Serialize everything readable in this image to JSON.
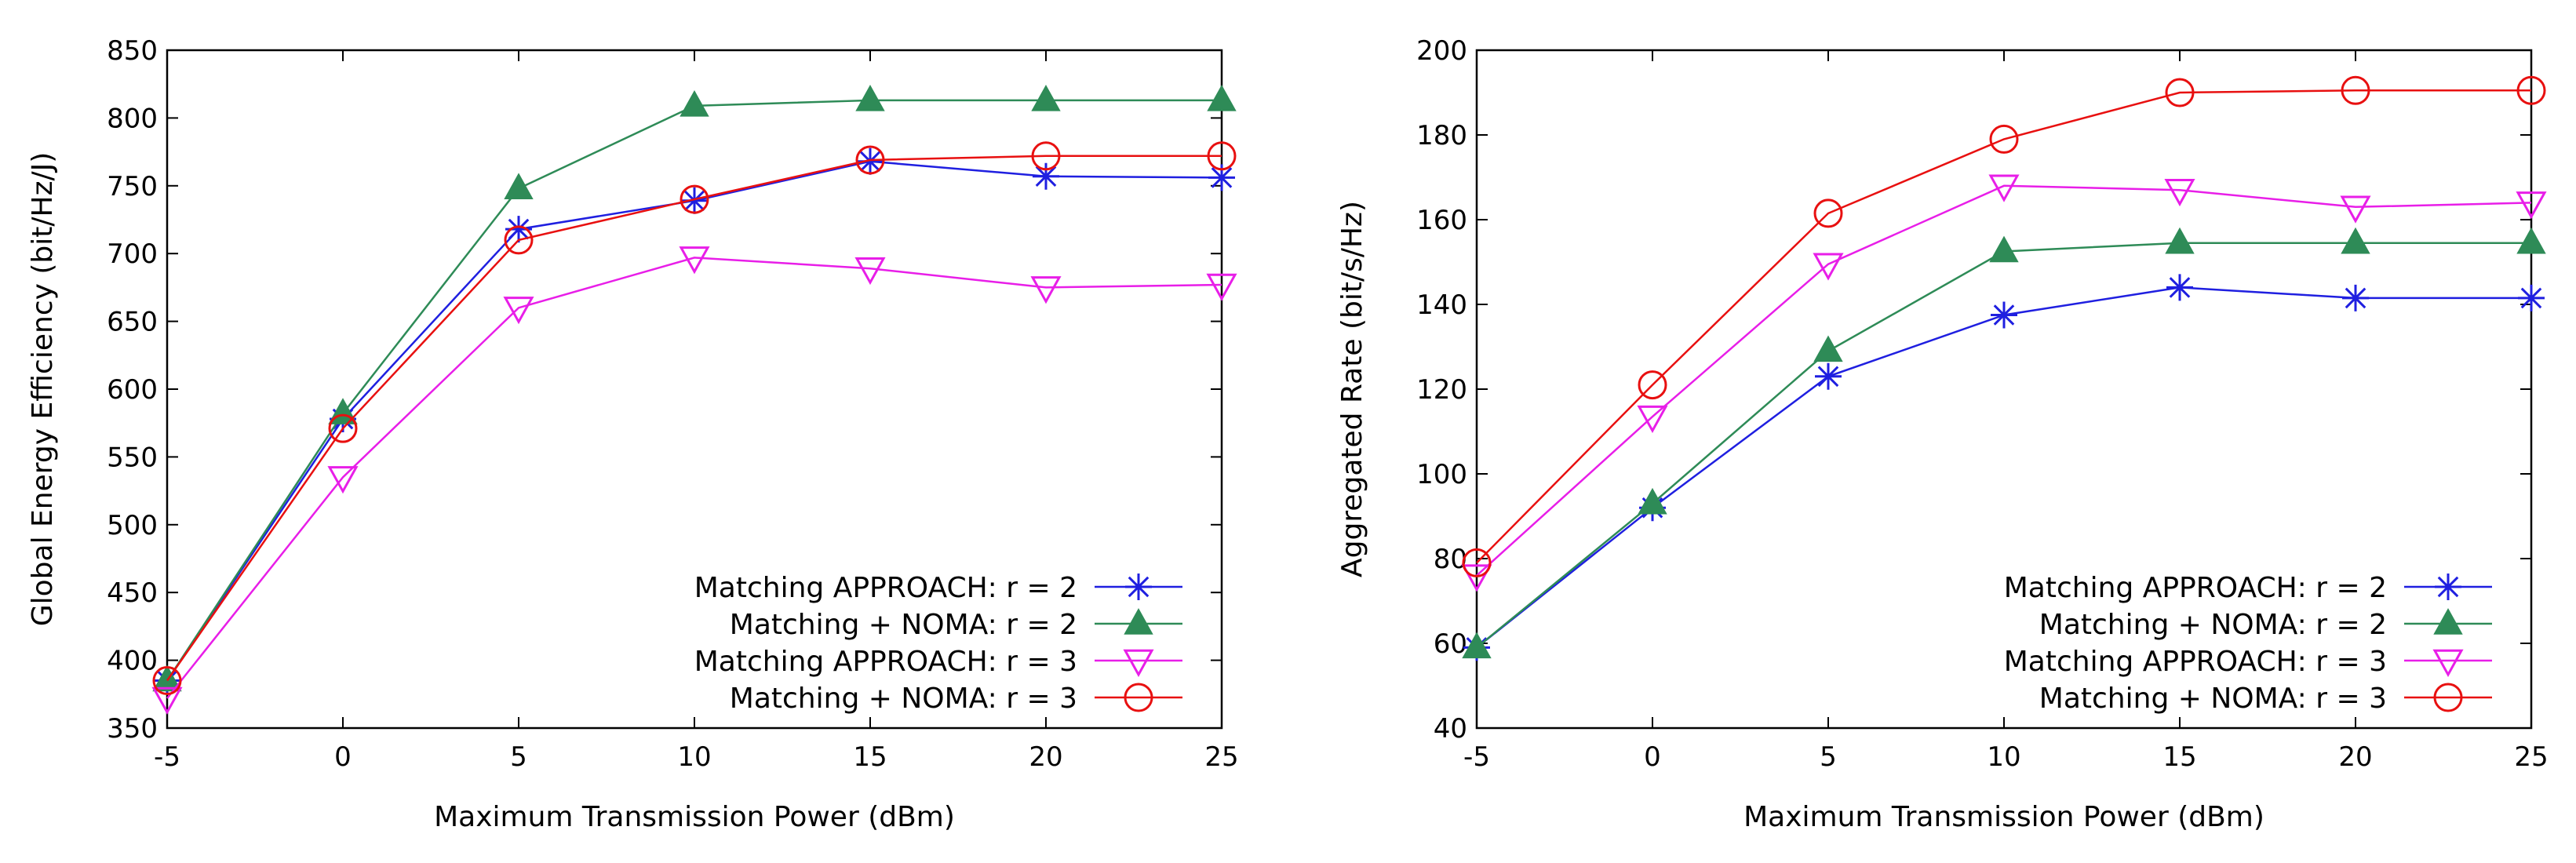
{
  "colors": {
    "blue": "#1f1fe0",
    "green": "#2e8b57",
    "magenta": "#e81ee8",
    "red": "#e81010",
    "axis": "#000000"
  },
  "legend": [
    "Matching APPROACH: r = 2",
    "Matching + NOMA: r = 2",
    "Matching APPROACH: r = 3",
    "Matching + NOMA: r = 3"
  ],
  "chart_data": [
    {
      "type": "line",
      "title": "",
      "xlabel": "Maximum Transmission Power (dBm)",
      "ylabel": "Global Energy Efficiency (bit/Hz/J)",
      "x": [
        -5,
        0,
        5,
        10,
        15,
        20,
        25
      ],
      "xlim": [
        -5,
        25
      ],
      "ylim": [
        350,
        850
      ],
      "xticks": [
        -5,
        0,
        5,
        10,
        15,
        20,
        25
      ],
      "yticks": [
        350,
        400,
        450,
        500,
        550,
        600,
        650,
        700,
        750,
        800,
        850
      ],
      "grid": false,
      "legend_position": "bottom-right",
      "series": [
        {
          "name": "Matching APPROACH: r = 2",
          "marker": "asterisk",
          "color": "#1f1fe0",
          "values": [
            385,
            578,
            718,
            739,
            768,
            757,
            756
          ]
        },
        {
          "name": "Matching + NOMA: r = 2",
          "marker": "triangle-filled",
          "color": "#2e8b57",
          "values": [
            385,
            582,
            748,
            809,
            813,
            813,
            813
          ]
        },
        {
          "name": "Matching APPROACH: r = 3",
          "marker": "triangle-down-open",
          "color": "#e81ee8",
          "values": [
            372,
            535,
            660,
            697,
            689,
            675,
            677
          ]
        },
        {
          "name": "Matching + NOMA: r = 3",
          "marker": "circle-open",
          "color": "#e81010",
          "values": [
            385,
            571,
            710,
            740,
            769,
            772,
            772
          ]
        }
      ]
    },
    {
      "type": "line",
      "title": "",
      "xlabel": "Maximum Transmission Power (dBm)",
      "ylabel": "Aggregated Rate (bit/s/Hz)",
      "x": [
        -5,
        0,
        5,
        10,
        15,
        20,
        25
      ],
      "xlim": [
        -5,
        25
      ],
      "ylim": [
        40,
        200
      ],
      "xticks": [
        -5,
        0,
        5,
        10,
        15,
        20,
        25
      ],
      "yticks": [
        40,
        60,
        80,
        100,
        120,
        140,
        160,
        180,
        200
      ],
      "grid": false,
      "legend_position": "bottom-right",
      "series": [
        {
          "name": "Matching APPROACH: r = 2",
          "marker": "asterisk",
          "color": "#1f1fe0",
          "values": [
            59,
            92,
            123,
            137.5,
            144,
            141.5,
            141.5
          ]
        },
        {
          "name": "Matching + NOMA: r = 2",
          "marker": "triangle-filled",
          "color": "#2e8b57",
          "values": [
            59,
            93,
            129,
            152.5,
            154.5,
            154.5,
            154.5
          ]
        },
        {
          "name": "Matching APPROACH: r = 3",
          "marker": "triangle-down-open",
          "color": "#e81ee8",
          "values": [
            76,
            113.5,
            149.5,
            168,
            167,
            163,
            164
          ]
        },
        {
          "name": "Matching + NOMA: r = 3",
          "marker": "circle-open",
          "color": "#e81010",
          "values": [
            79,
            121,
            161.5,
            179,
            190,
            190.5,
            190.5
          ]
        }
      ]
    }
  ]
}
